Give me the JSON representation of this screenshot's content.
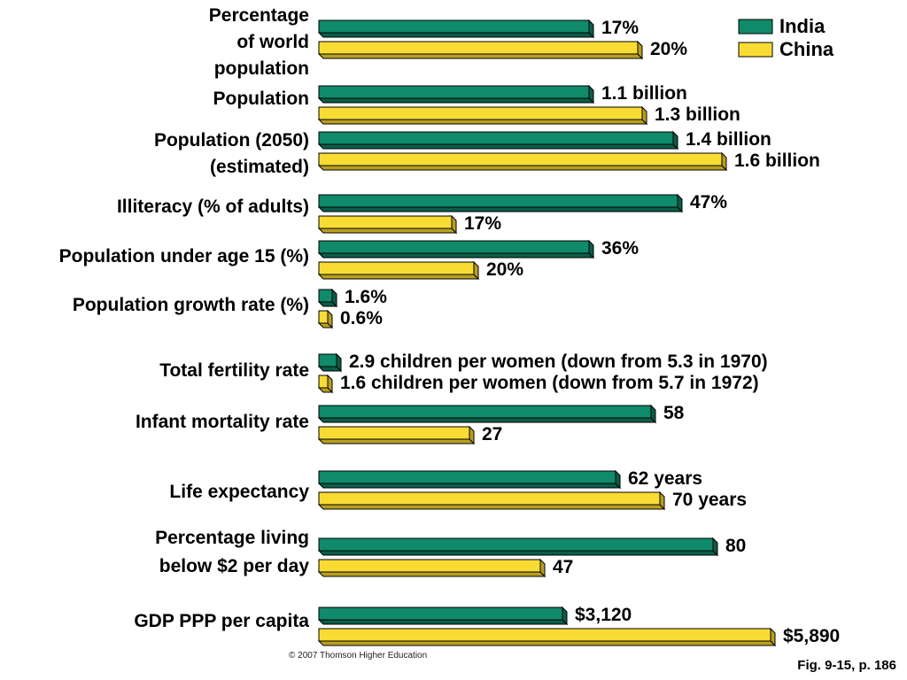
{
  "chart_data": {
    "type": "bar",
    "orientation": "horizontal",
    "legend_placement": "top-right",
    "series": [
      {
        "name": "India",
        "color": "#0f8a6a",
        "side_color": "#0a5e48"
      },
      {
        "name": "China",
        "color": "#f8dc34",
        "side_color": "#b8a020"
      }
    ],
    "categories": [
      {
        "label": [
          "Percentage",
          "of world",
          "population"
        ],
        "values": [
          17,
          20
        ],
        "value_labels": [
          "17%",
          "20%"
        ]
      },
      {
        "label": [
          "Population"
        ],
        "values": [
          1.1,
          1.3
        ],
        "value_labels": [
          "1.1 billion",
          "1.3 billion"
        ]
      },
      {
        "label": [
          "Population (2050)",
          "(estimated)"
        ],
        "values": [
          1.4,
          1.6
        ],
        "value_labels": [
          "1.4 billion",
          "1.6 billion"
        ]
      },
      {
        "label": [
          "Illiteracy (% of adults)"
        ],
        "values": [
          47,
          17
        ],
        "value_labels": [
          "47%",
          "17%"
        ]
      },
      {
        "label": [
          "Population under age 15 (%)"
        ],
        "values": [
          36,
          20
        ],
        "value_labels": [
          "36%",
          "20%"
        ]
      },
      {
        "label": [
          "Population growth rate (%)"
        ],
        "values": [
          1.6,
          0.6
        ],
        "value_labels": [
          "1.6%",
          "0.6%"
        ]
      },
      {
        "label": [
          "Total fertility rate"
        ],
        "values": [
          2.9,
          1.6
        ],
        "value_labels": [
          "2.9 children per women (down from 5.3 in 1970)",
          "1.6 children per women (down from 5.7 in 1972)"
        ]
      },
      {
        "label": [
          "Infant mortality rate"
        ],
        "values": [
          58,
          27
        ],
        "value_labels": [
          "58",
          "27"
        ]
      },
      {
        "label": [
          "Life expectancy"
        ],
        "values": [
          62,
          70
        ],
        "value_labels": [
          "62 years",
          "70 years"
        ]
      },
      {
        "label": [
          "Percentage living",
          "below $2 per day"
        ],
        "values": [
          80,
          47
        ],
        "value_labels": [
          "80",
          "47"
        ]
      },
      {
        "label": [
          "GDP PPP per capita"
        ],
        "values": [
          3120,
          5890
        ],
        "value_labels": [
          "$3,120",
          "$5,890"
        ]
      }
    ]
  },
  "footer": {
    "copyright": "© 2007 Thomson Higher Education",
    "figure_ref": "Fig. 9-15, p. 186"
  }
}
